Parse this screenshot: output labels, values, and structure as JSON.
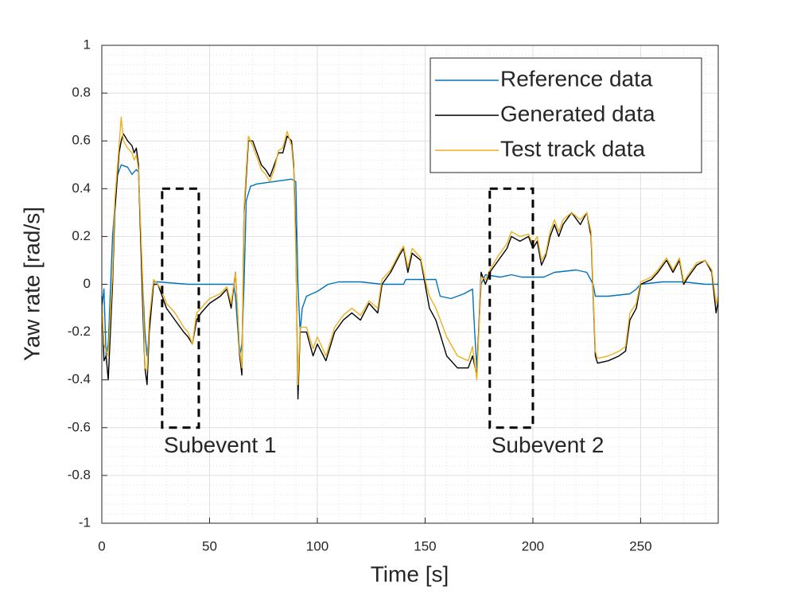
{
  "chart_data": {
    "type": "line",
    "xlabel": "Time [s]",
    "ylabel": "Yaw rate [rad/s]",
    "xlim": [
      0,
      286
    ],
    "ylim": [
      -1,
      1
    ],
    "xticks": [
      0,
      50,
      100,
      150,
      200,
      250
    ],
    "yticks": [
      -1,
      -0.8,
      -0.6,
      -0.4,
      -0.2,
      0,
      0.2,
      0.4,
      0.6,
      0.8,
      1
    ],
    "grid": true,
    "minor_grid": true,
    "legend": "northeast",
    "series": [
      {
        "name": "Reference data",
        "color": "#0072bd",
        "x": [
          0,
          1,
          2,
          3,
          5,
          7,
          9,
          12,
          14,
          16,
          17,
          18,
          19,
          20,
          21,
          24,
          26,
          40,
          61,
          62,
          64,
          65,
          66,
          67,
          69,
          72,
          80,
          88,
          90,
          91,
          92,
          93,
          95,
          100,
          105,
          110,
          120,
          130,
          140,
          141,
          150,
          155,
          157,
          162,
          168,
          172,
          173,
          174,
          176,
          178,
          185,
          190,
          195,
          200,
          205,
          210,
          220,
          225,
          228,
          229,
          235,
          245,
          248,
          250,
          260,
          270,
          280,
          286
        ],
        "values": [
          -0.1,
          -0.02,
          -0.3,
          -0.25,
          0.2,
          0.45,
          0.5,
          0.49,
          0.46,
          0.48,
          0.47,
          0.2,
          0.0,
          -0.2,
          -0.3,
          0.01,
          0.01,
          0.0,
          0.0,
          -0.05,
          -0.3,
          -0.25,
          0.0,
          0.35,
          0.41,
          0.42,
          0.43,
          0.44,
          0.43,
          0.0,
          -0.2,
          -0.1,
          -0.05,
          -0.03,
          0.0,
          0.01,
          0.01,
          0.0,
          0.0,
          0.02,
          0.02,
          0.02,
          -0.05,
          -0.06,
          -0.04,
          -0.02,
          -0.2,
          -0.35,
          0.0,
          0.04,
          0.03,
          0.04,
          0.03,
          0.03,
          0.03,
          0.05,
          0.06,
          0.05,
          0.0,
          -0.05,
          -0.05,
          -0.04,
          -0.02,
          0.0,
          0.01,
          0.01,
          0.0,
          0.0
        ]
      },
      {
        "name": "Generated data",
        "color": "#000000",
        "x": [
          0,
          1,
          2,
          3,
          5,
          6,
          8,
          9,
          10,
          12,
          14,
          15,
          16,
          17,
          18,
          19,
          20,
          21,
          22,
          24,
          26,
          28,
          30,
          34,
          38,
          40,
          42,
          44,
          46,
          50,
          55,
          58,
          60,
          62,
          64,
          65,
          66,
          67,
          68,
          70,
          72,
          74,
          76,
          78,
          80,
          82,
          84,
          86,
          88,
          89,
          90,
          91,
          92,
          95,
          98,
          100,
          104,
          108,
          112,
          116,
          120,
          124,
          128,
          130,
          134,
          138,
          140,
          142,
          144,
          148,
          150,
          152,
          155,
          160,
          165,
          170,
          172,
          174,
          176,
          178,
          180,
          184,
          188,
          190,
          194,
          198,
          200,
          202,
          204,
          206,
          208,
          210,
          212,
          214,
          218,
          222,
          225,
          227,
          229,
          230,
          235,
          240,
          243,
          245,
          248,
          250,
          255,
          258,
          262,
          265,
          268,
          270,
          272,
          276,
          280,
          283,
          285,
          286
        ],
        "values": [
          -0.05,
          -0.32,
          -0.3,
          -0.4,
          0.0,
          0.3,
          0.55,
          0.6,
          0.63,
          0.6,
          0.58,
          0.55,
          0.57,
          0.5,
          0.2,
          -0.1,
          -0.35,
          -0.42,
          -0.2,
          0.0,
          0.0,
          -0.05,
          -0.1,
          -0.15,
          -0.2,
          -0.22,
          -0.25,
          -0.15,
          -0.12,
          -0.08,
          -0.05,
          -0.02,
          -0.1,
          0.05,
          -0.3,
          -0.38,
          0.3,
          0.45,
          0.6,
          0.6,
          0.55,
          0.5,
          0.48,
          0.45,
          0.5,
          0.55,
          0.55,
          0.62,
          0.6,
          0.5,
          0.2,
          -0.48,
          -0.2,
          -0.2,
          -0.3,
          -0.25,
          -0.32,
          -0.2,
          -0.15,
          -0.12,
          -0.15,
          -0.08,
          -0.12,
          0.0,
          0.05,
          0.12,
          0.15,
          0.05,
          0.13,
          0.1,
          0.0,
          -0.1,
          -0.15,
          -0.3,
          -0.35,
          -0.35,
          -0.3,
          -0.38,
          0.05,
          0.0,
          0.05,
          0.1,
          0.15,
          0.2,
          0.18,
          0.2,
          0.15,
          0.18,
          0.08,
          0.12,
          0.2,
          0.25,
          0.2,
          0.25,
          0.3,
          0.25,
          0.3,
          0.2,
          -0.3,
          -0.33,
          -0.32,
          -0.3,
          -0.28,
          -0.15,
          -0.1,
          0.0,
          0.02,
          0.05,
          0.1,
          0.05,
          0.1,
          0.0,
          0.03,
          0.08,
          0.1,
          0.05,
          -0.12,
          -0.07
        ]
      },
      {
        "name": "Test track data",
        "color": "#edb120",
        "x": [
          0,
          1,
          2,
          3,
          5,
          6,
          8,
          9,
          10,
          12,
          14,
          15,
          16,
          17,
          18,
          19,
          20,
          21,
          22,
          24,
          26,
          28,
          30,
          34,
          38,
          40,
          42,
          44,
          46,
          50,
          55,
          58,
          60,
          62,
          64,
          65,
          66,
          67,
          68,
          70,
          72,
          74,
          76,
          78,
          80,
          82,
          84,
          86,
          88,
          89,
          90,
          91,
          92,
          95,
          98,
          100,
          104,
          108,
          112,
          116,
          120,
          124,
          128,
          130,
          134,
          138,
          140,
          142,
          144,
          148,
          150,
          152,
          155,
          160,
          165,
          170,
          172,
          174,
          176,
          178,
          180,
          184,
          188,
          190,
          194,
          198,
          200,
          202,
          204,
          206,
          208,
          210,
          212,
          214,
          218,
          222,
          225,
          227,
          229,
          230,
          235,
          240,
          243,
          245,
          248,
          250,
          255,
          258,
          262,
          265,
          268,
          270,
          272,
          276,
          280,
          283,
          285,
          286
        ],
        "values": [
          -0.08,
          -0.25,
          -0.28,
          -0.3,
          0.05,
          0.35,
          0.58,
          0.7,
          0.6,
          0.57,
          0.55,
          0.52,
          0.54,
          0.48,
          0.25,
          0.0,
          -0.35,
          -0.36,
          -0.15,
          0.02,
          0.0,
          -0.03,
          -0.08,
          -0.12,
          -0.18,
          -0.2,
          -0.25,
          -0.12,
          -0.1,
          -0.06,
          -0.04,
          -0.01,
          -0.08,
          0.05,
          -0.28,
          -0.35,
          0.32,
          0.48,
          0.62,
          0.58,
          0.53,
          0.48,
          0.46,
          0.43,
          0.48,
          0.56,
          0.57,
          0.64,
          0.58,
          0.48,
          0.15,
          -0.42,
          -0.18,
          -0.18,
          -0.27,
          -0.22,
          -0.3,
          -0.18,
          -0.13,
          -0.1,
          -0.13,
          -0.07,
          -0.1,
          0.02,
          0.06,
          0.13,
          0.16,
          0.07,
          0.15,
          0.11,
          0.02,
          -0.05,
          -0.1,
          -0.22,
          -0.3,
          -0.32,
          -0.26,
          -0.4,
          0.03,
          0.02,
          0.06,
          0.12,
          0.17,
          0.22,
          0.2,
          0.21,
          0.17,
          0.2,
          0.1,
          0.13,
          0.22,
          0.27,
          0.22,
          0.27,
          0.3,
          0.27,
          0.3,
          0.22,
          -0.28,
          -0.31,
          -0.3,
          -0.28,
          -0.26,
          -0.12,
          -0.08,
          0.01,
          0.03,
          0.06,
          0.11,
          0.06,
          0.11,
          0.01,
          0.04,
          0.09,
          0.1,
          0.06,
          -0.08,
          -0.05
        ]
      }
    ],
    "annotations": [
      {
        "text": "Subevent 1",
        "x": [
          28,
          45
        ],
        "y": [
          -0.6,
          0.4
        ]
      },
      {
        "text": "Subevent 2",
        "x": [
          180,
          200
        ],
        "y": [
          -0.6,
          0.4
        ]
      }
    ]
  }
}
